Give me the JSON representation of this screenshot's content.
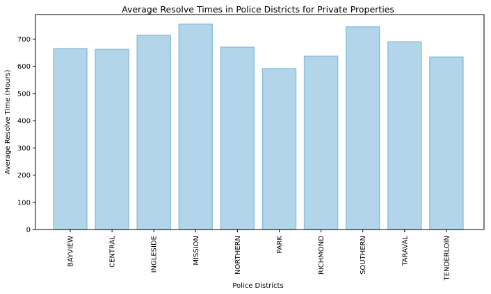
{
  "chart_data": {
    "type": "bar",
    "title": "Average Resolve Times in Police Districts for Private Properties",
    "xlabel": "Police Districts",
    "ylabel": "Average Resolve Time (Hours)",
    "categories": [
      "BAYVIEW",
      "CENTRAL",
      "INGLESIDE",
      "MISSION",
      "NORTHERN",
      "PARK",
      "RICHMOND",
      "SOUTHERN",
      "TARAVAL",
      "TENDERLOIN"
    ],
    "values": [
      665,
      662,
      714,
      755,
      670,
      591,
      637,
      745,
      690,
      634
    ],
    "ylim": [
      0,
      790
    ],
    "yticks": [
      0,
      100,
      200,
      300,
      400,
      500,
      600,
      700
    ],
    "grid": false,
    "legend": "none",
    "colors": {
      "bar_fill": "#b3d5e9",
      "bar_edge": "#8fc0dd",
      "axis": "#000000"
    }
  }
}
